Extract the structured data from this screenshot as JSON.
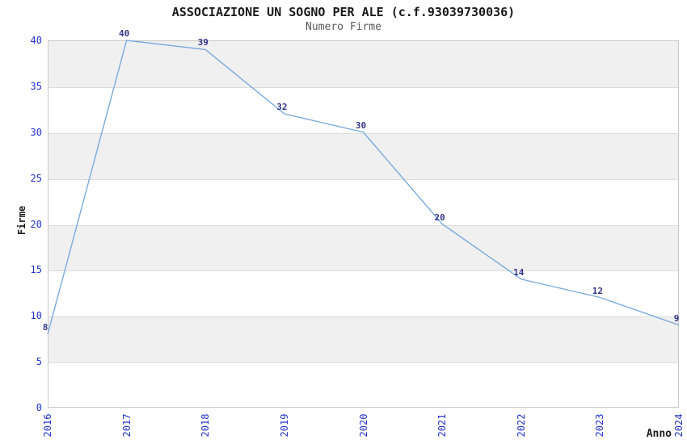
{
  "chart_data": {
    "type": "line",
    "title": "ASSOCIAZIONE UN SOGNO PER ALE (c.f.93039730036)",
    "subtitle": "Numero Firme",
    "xlabel": "Anno",
    "ylabel": "Firme",
    "x": [
      2016,
      2017,
      2018,
      2019,
      2020,
      2021,
      2022,
      2023,
      2024
    ],
    "series": [
      {
        "name": "Numero Firme",
        "values": [
          8,
          40,
          39,
          32,
          30,
          20,
          14,
          12,
          9
        ]
      }
    ],
    "ylim": [
      0,
      40
    ],
    "ytick_step": 5,
    "yticks": [
      0,
      5,
      10,
      15,
      20,
      25,
      30,
      35,
      40
    ],
    "grid": "horizontal-bands-on",
    "legend": "none",
    "data_labels": "shown",
    "colors": {
      "line": "#7aaade",
      "band": "#f0f0f0",
      "gridline": "#dcdcdc",
      "plot_border": "#c8c8c8",
      "tick_text": "#2233cc",
      "data_label_text": "#333388",
      "title_text": "#1a1a1a",
      "subtitle_text": "#595959"
    }
  }
}
